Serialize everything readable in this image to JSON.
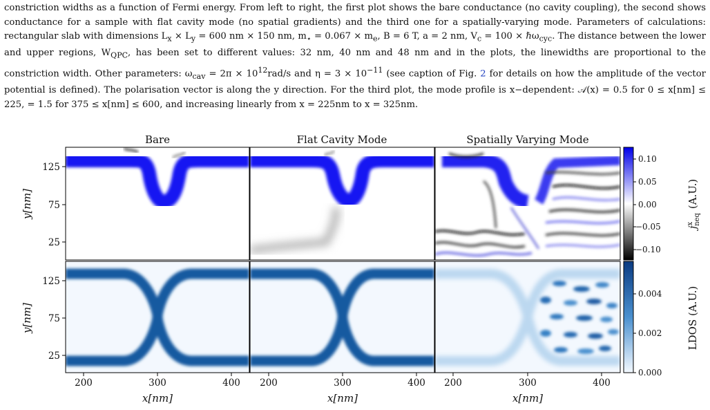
{
  "caption": {
    "part1": "constriction widths as a function of Fermi energy. From left to right, the first plot shows the bare conductance (no cavity coupling), the second shows conductance for a sample with flat cavity mode (no spatial gradients) and the third one for a spatially-varying mode. Parameters of calculations: rectangular slab with dimensions L",
    "p_x_sub": "x",
    "p_times": " × L",
    "p_y_sub": "y",
    "part2": " = 600 nm × 150 nm, m",
    "p_star": "⋆",
    "part3": " = 0.067 × m",
    "p_e": "e",
    "part4": ", B = 6 T, a = 2 nm, V",
    "p_c": "c",
    "part5": " = 100 × ℏω",
    "p_cyc": "cyc",
    "part6": ". The distance between the lower and upper regions, W",
    "p_qpc": "QPC",
    "part7": ", has been set to different values: 32 nm, 40 nm and 48 nm and in the plots, the linewidths are proportional to the constriction width. Other parameters: ω",
    "p_cav": "cav",
    "part8": " = 2π × 10",
    "p_12": "12",
    "part9": "rad/s and η = 3 × 10",
    "p_m11": "−11",
    "part10": " (see caption of Fig. ",
    "figref": "2",
    "part11": " for details on how the amplitude of the vector potential is defined). The polarisation vector is along the y direction. For the third plot, the mode profile is x−dependent: 𝒜(x) = 0.5 for 0 ≤ x[nm] ≤ 225, = 1.5 for 375 ≤ x[nm] ≤ 600, and increasing linearly from x = 225nm to x = 325nm."
  },
  "figure": {
    "panel_titles": [
      "Bare",
      "Flat Cavity Mode",
      "Spatially Varying Mode"
    ],
    "y_axis_label": "y[nm]",
    "x_axis_label": "x[nm]",
    "y_ticks": [
      "125",
      "75",
      "25"
    ],
    "x_ticks": [
      "200",
      "300",
      "400"
    ],
    "colorbar_top": {
      "label": "j",
      "label_sup": "x",
      "label_sub": "neq",
      "label_suffix": "(A.U.)",
      "ticks": [
        "0.10",
        "0.05",
        "0.00",
        "−0.05",
        "−0.10"
      ],
      "colors": [
        "#0000ff",
        "#ffffff",
        "#000000"
      ]
    },
    "colorbar_bottom": {
      "label": "LDOS (A.U.)",
      "ticks": [
        "0.004",
        "0.002",
        "0.000"
      ],
      "colors": [
        "#0a3a80",
        "#4a90cf",
        "#f4f9ff"
      ]
    }
  },
  "chart_data": [
    {
      "type": "heatmap",
      "title": "Bare",
      "row": "current density",
      "xlabel": "x[nm]",
      "ylabel": "y[nm]",
      "xlim": [
        175,
        425
      ],
      "ylim": [
        0,
        150
      ],
      "colorbar": "j^x_neq (A.U.)",
      "clim": [
        -0.12,
        0.12
      ]
    },
    {
      "type": "heatmap",
      "title": "Flat Cavity Mode",
      "row": "current density",
      "xlabel": "x[nm]",
      "ylabel": "y[nm]",
      "xlim": [
        175,
        425
      ],
      "ylim": [
        0,
        150
      ],
      "colorbar": "j^x_neq (A.U.)",
      "clim": [
        -0.12,
        0.12
      ]
    },
    {
      "type": "heatmap",
      "title": "Spatially Varying Mode",
      "row": "current density",
      "xlabel": "x[nm]",
      "ylabel": "y[nm]",
      "xlim": [
        175,
        425
      ],
      "ylim": [
        0,
        150
      ],
      "colorbar": "j^x_neq (A.U.)",
      "clim": [
        -0.12,
        0.12
      ]
    },
    {
      "type": "heatmap",
      "title": "",
      "row": "LDOS",
      "xlabel": "x[nm]",
      "ylabel": "y[nm]",
      "xlim": [
        175,
        425
      ],
      "ylim": [
        0,
        150
      ],
      "colorbar": "LDOS (A.U.)",
      "clim": [
        0,
        0.0055
      ]
    },
    {
      "type": "heatmap",
      "title": "",
      "row": "LDOS",
      "xlabel": "x[nm]",
      "ylabel": "y[nm]",
      "xlim": [
        175,
        425
      ],
      "ylim": [
        0,
        150
      ],
      "colorbar": "LDOS (A.U.)",
      "clim": [
        0,
        0.0055
      ]
    },
    {
      "type": "heatmap",
      "title": "",
      "row": "LDOS",
      "xlabel": "x[nm]",
      "ylabel": "y[nm]",
      "xlim": [
        175,
        425
      ],
      "ylim": [
        0,
        150
      ],
      "colorbar": "LDOS (A.U.)",
      "clim": [
        0,
        0.0055
      ]
    }
  ]
}
